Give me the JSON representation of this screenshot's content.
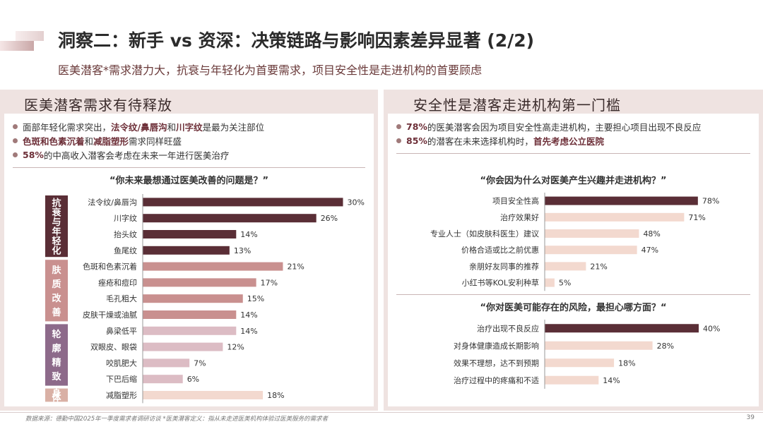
{
  "header": {
    "title": "洞察二：新手 vs 资深：决策链路与影响因素差异显著 (2/2)",
    "subtitle": "医美潜客*需求潜力大，抗衰与年轻化为首要需求，项目安全性是走进机构的首要顾虑"
  },
  "left": {
    "heading": "医美潜客需求有待释放",
    "bullets": [
      {
        "parts": [
          {
            "t": "面部年轻化需求突出，",
            "h": false
          },
          {
            "t": "法令纹/鼻唇沟",
            "h": true
          },
          {
            "t": "和",
            "h": false
          },
          {
            "t": "川字纹",
            "h": true
          },
          {
            "t": "是最为关注部位",
            "h": false
          }
        ]
      },
      {
        "parts": [
          {
            "t": "色斑和色素沉着",
            "h": true
          },
          {
            "t": "和",
            "h": false
          },
          {
            "t": "减脂塑形",
            "h": true
          },
          {
            "t": "需求同样旺盛",
            "h": false
          }
        ]
      },
      {
        "parts": [
          {
            "t": "58%",
            "h": true
          },
          {
            "t": "的中高收入潜客会考虑在未来一年进行医美治疗",
            "h": false
          }
        ]
      }
    ],
    "question": "“你未来最想通过医美改善的问题是？”"
  },
  "right": {
    "heading": "安全性是潜客走进机构第一门槛",
    "bullets": [
      {
        "parts": [
          {
            "t": "78%",
            "h": true
          },
          {
            "t": "的医美潜客会因为项目安全性高走进机构，主要担心项目出现不良反应",
            "h": false
          }
        ]
      },
      {
        "parts": [
          {
            "t": "85%",
            "h": true
          },
          {
            "t": "的潜客在未来选择机构时，",
            "h": false
          },
          {
            "t": "首先考虑公立医院",
            "h": true
          }
        ]
      }
    ],
    "question1": "“你会因为什么对医美产生兴趣并走进机构？”",
    "question2": "“你对医美可能存在的风险，最担心哪方面？“"
  },
  "chart_data": [
    {
      "type": "bar",
      "orientation": "horizontal",
      "title": "“你未来最想通过医美改善的问题是？”",
      "unit": "%",
      "groups": [
        {
          "name": "抗衰与年轻化",
          "color": "#5a2e36",
          "label_color": "#5a2e36",
          "categories": [
            "法令纹/鼻唇沟",
            "川字纹",
            "抬头纹",
            "鱼尾纹"
          ],
          "values": [
            30,
            26,
            14,
            13
          ]
        },
        {
          "name": "肤质改善",
          "color": "#c9908f",
          "label_color": "#c9908f",
          "categories": [
            "色斑和色素沉着",
            "痤疮和痘印",
            "毛孔粗大",
            "皮肤干燥或油腻"
          ],
          "values": [
            21,
            17,
            15,
            14
          ]
        },
        {
          "name": "轮廓精致",
          "color": "#dcbcc4",
          "label_color": "#8d6a8a",
          "categories": [
            "鼻梁低平",
            "双眼皮、眼袋",
            "咬肌肥大",
            "下巴后缩"
          ],
          "values": [
            14,
            12,
            7,
            6
          ]
        },
        {
          "name": "身体",
          "color": "#f3d9cf",
          "label_color": "#d9b0a5",
          "categories": [
            "减脂塑形"
          ],
          "values": [
            18
          ]
        }
      ]
    },
    {
      "type": "bar",
      "orientation": "horizontal",
      "title": "“你会因为什么对医美产生兴趣并走进机构？”",
      "unit": "%",
      "categories": [
        "项目安全性高",
        "治疗效果好",
        "专业人士（如皮肤科医生）建议",
        "价格合适或比之前优惠",
        "亲朋好友同事的推荐",
        "小红书等KOL安利种草"
      ],
      "values": [
        78,
        71,
        48,
        47,
        21,
        5
      ],
      "colors": [
        "#5a2e36",
        "#f3d9cf",
        "#f3d9cf",
        "#f3d9cf",
        "#f3d9cf",
        "#f3d9cf"
      ]
    },
    {
      "type": "bar",
      "orientation": "horizontal",
      "title": "“你对医美可能存在的风险，最担心哪方面？“",
      "unit": "%",
      "categories": [
        "治疗出现不良反应",
        "对身体健康造成长期影响",
        "效果不理想，达不到预期",
        "治疗过程中的疼痛和不适"
      ],
      "values": [
        40,
        28,
        18,
        14
      ],
      "colors": [
        "#5a2e36",
        "#f3d9cf",
        "#f3d9cf",
        "#f3d9cf"
      ]
    }
  ],
  "footer": {
    "source": "数据来源：德勤中国2025年一季度需求者调研访谈 *医美潜客定义：指从未走进医美机构体验过医美服务的需求者",
    "page": "39"
  }
}
